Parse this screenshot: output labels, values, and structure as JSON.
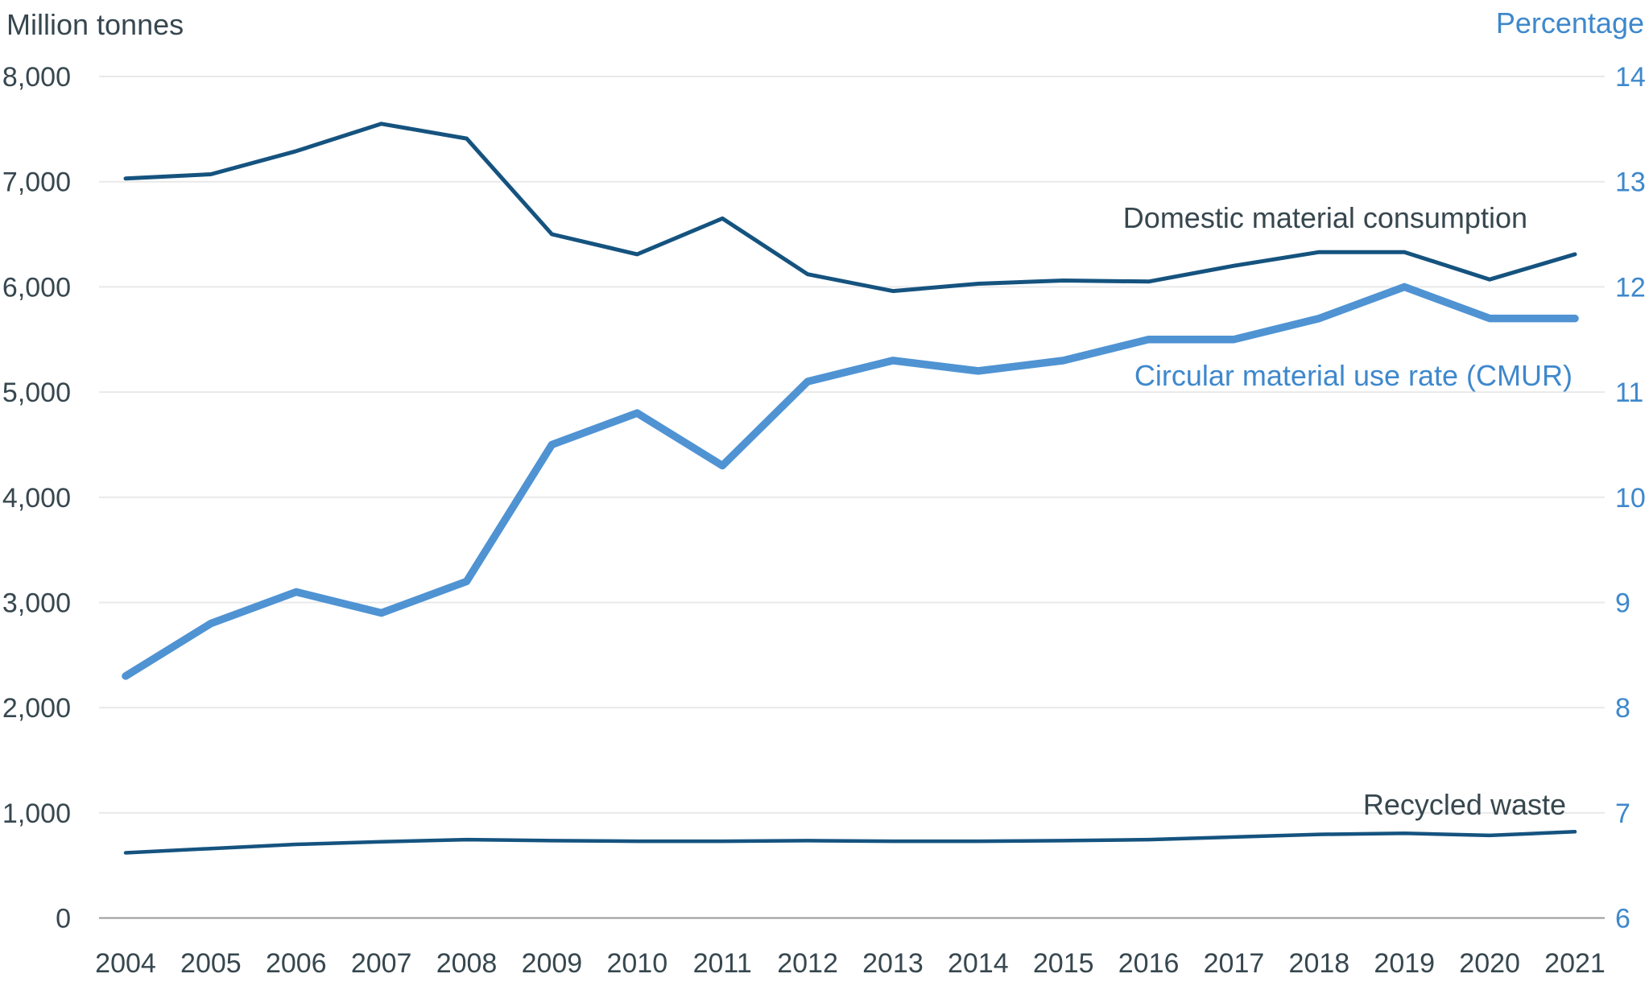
{
  "chart_data": {
    "type": "line",
    "title": "",
    "x_categories": [
      "2004",
      "2005",
      "2006",
      "2007",
      "2008",
      "2009",
      "2010",
      "2011",
      "2012",
      "2013",
      "2014",
      "2015",
      "2016",
      "2017",
      "2018",
      "2019",
      "2020",
      "2021"
    ],
    "left_axis": {
      "title": "Million tonnes",
      "range": [
        0,
        8000
      ],
      "tick_labels": [
        "8,000",
        "7,000",
        "6,000",
        "5,000",
        "4,000",
        "3,000",
        "2,000",
        "1,000",
        "0"
      ]
    },
    "right_axis": {
      "title": "Percentage",
      "range": [
        6,
        14
      ],
      "tick_labels": [
        "14",
        "13",
        "12",
        "11",
        "10",
        "9",
        "8",
        "7",
        "6"
      ]
    },
    "grid": true,
    "grid_color": "#e9e9e9",
    "baseline_color": "#999999",
    "legend_position": "inline-labels",
    "series": [
      {
        "name": "Domestic material consumption",
        "axis": "left",
        "color": "#15537f",
        "stroke_width": 5,
        "values": [
          7030,
          7070,
          7290,
          7550,
          7410,
          6500,
          6310,
          6650,
          6120,
          5960,
          6030,
          6060,
          6050,
          6200,
          6330,
          6330,
          6070,
          6310
        ]
      },
      {
        "name": "Circular material use rate (CMUR)",
        "axis": "right",
        "color": "#4f93d3",
        "stroke_width": 9.5,
        "values": [
          8.3,
          8.8,
          9.1,
          8.9,
          9.2,
          10.5,
          10.8,
          10.3,
          11.1,
          11.3,
          11.2,
          11.3,
          11.5,
          11.5,
          11.7,
          12.0,
          11.7,
          11.7
        ]
      },
      {
        "name": "Recycled waste",
        "axis": "left",
        "color": "#15537f",
        "stroke_width": 4.5,
        "values": [
          620,
          660,
          700,
          725,
          745,
          735,
          730,
          730,
          735,
          730,
          730,
          735,
          745,
          770,
          795,
          805,
          785,
          820
        ]
      }
    ]
  },
  "colors": {
    "left_text": "#37474f",
    "right_text": "#3e88cc"
  }
}
